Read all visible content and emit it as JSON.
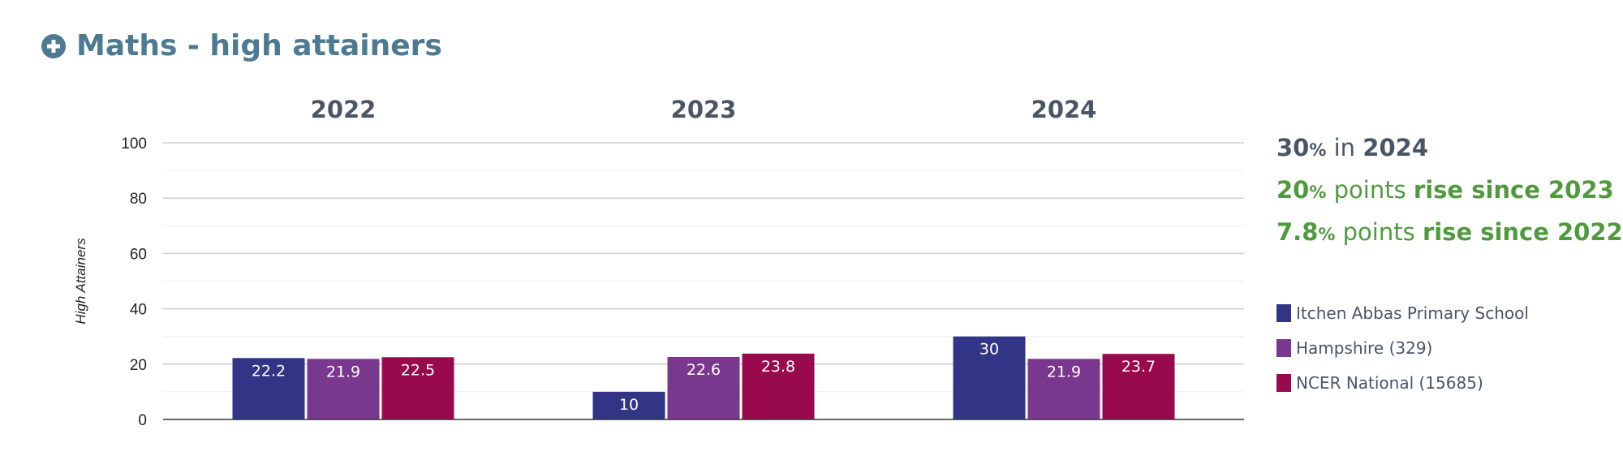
{
  "header": {
    "title": "Maths - high attainers"
  },
  "colors": {
    "school": "#323585",
    "county": "#7a378e",
    "national": "#990a4c",
    "title": "#4d7a91",
    "rise": "#4f9a3c",
    "text": "#4a5565"
  },
  "chart_data": {
    "type": "bar",
    "categories": [
      "2022",
      "2023",
      "2024"
    ],
    "series": [
      {
        "name": "Itchen Abbas Primary School",
        "values": [
          22.2,
          10,
          30
        ]
      },
      {
        "name": "Hampshire (329)",
        "values": [
          21.9,
          22.6,
          21.9
        ]
      },
      {
        "name": "NCER National (15685)",
        "values": [
          22.5,
          23.8,
          23.7
        ]
      }
    ],
    "ylabel": "High Attainers",
    "ylim": [
      0,
      100
    ],
    "yticks": [
      0,
      20,
      40,
      60,
      80,
      100
    ],
    "minor_grid": true,
    "legend_position": "right"
  },
  "summary": [
    {
      "value": "30",
      "unit": "%",
      "middle": " in ",
      "emphasis": "2024",
      "style": "current"
    },
    {
      "value": "20",
      "unit": "%",
      "middle": " points ",
      "emphasis": "rise since 2023",
      "style": "rise"
    },
    {
      "value": "7.8",
      "unit": "%",
      "middle": " points ",
      "emphasis": "rise since 2022",
      "style": "rise"
    }
  ]
}
